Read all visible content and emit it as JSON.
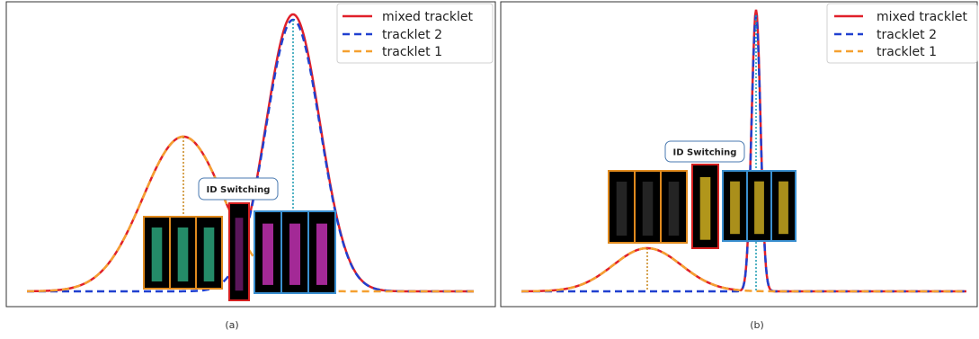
{
  "panels": [
    {
      "legend": [
        "mixed tracklet",
        "tracklet 2",
        "tracklet 1"
      ],
      "annotation": "ID Switching",
      "caption": "(a)"
    },
    {
      "legend": [
        "mixed tracklet",
        "tracklet 2",
        "tracklet 1"
      ],
      "annotation": "ID Switching",
      "caption": "(b)"
    }
  ]
}
